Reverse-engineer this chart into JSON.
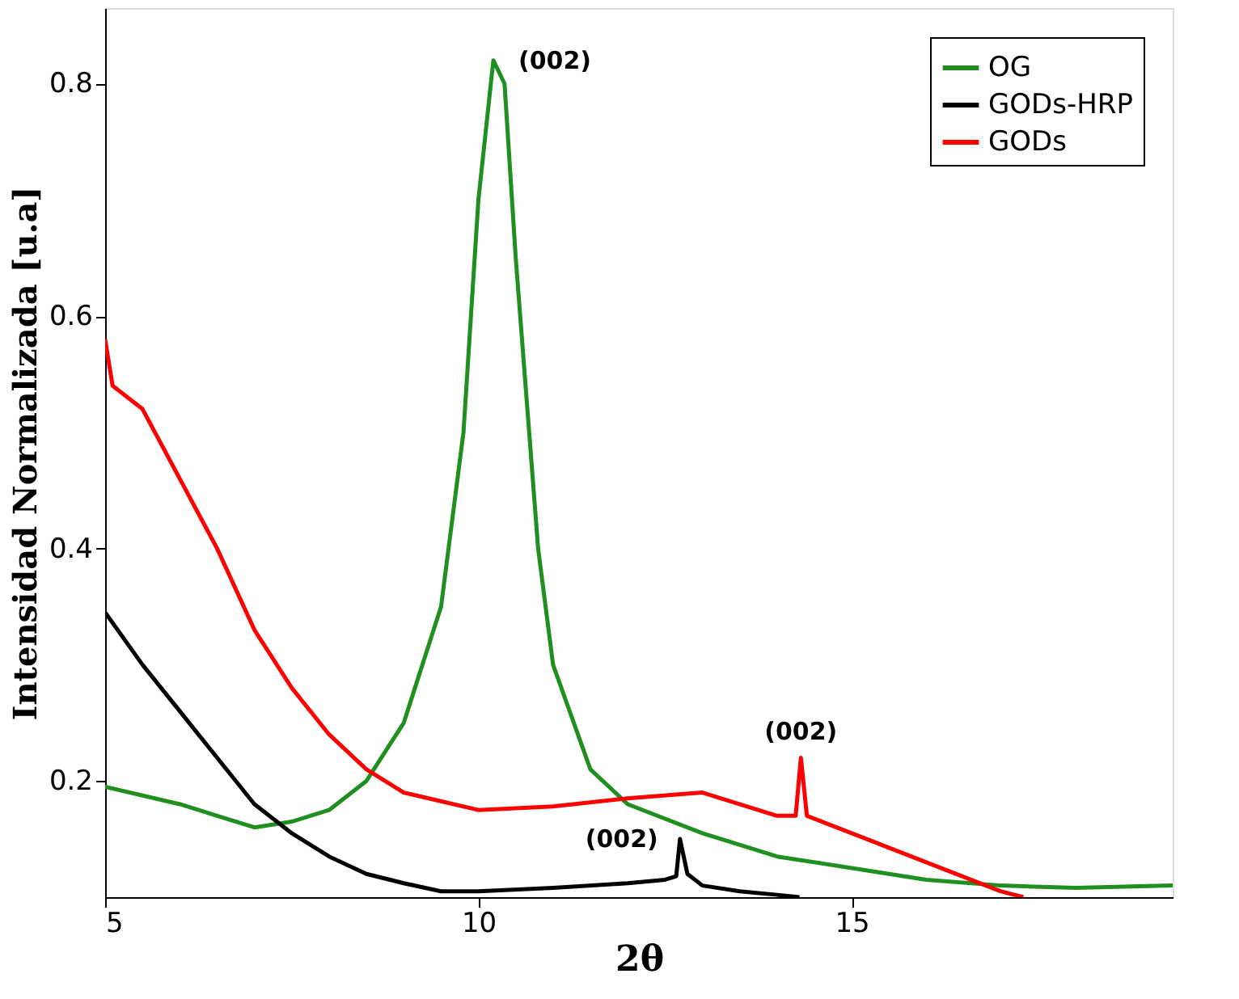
{
  "chart_data": {
    "type": "line",
    "xlabel": "2θ",
    "ylabel": "Intensidad Normalizada [u.a]",
    "xlim": [
      5,
      19.3
    ],
    "xticks": [
      5,
      10,
      15
    ],
    "ylim": [
      0.1,
      0.865
    ],
    "yticks": [
      0.2,
      0.4,
      0.6,
      0.8
    ],
    "grid": false,
    "legend": "top right",
    "marker": "none",
    "line_style": "solid",
    "series": [
      {
        "name": "OG",
        "color": "#1f8f1f",
        "x": [
          5,
          6,
          7,
          7.5,
          8,
          8.5,
          9,
          9.5,
          9.8,
          10,
          10.2,
          10.35,
          10.5,
          10.8,
          11,
          11.5,
          12,
          13,
          14,
          15,
          16,
          17,
          18,
          19.3
        ],
        "values": [
          0.195,
          0.18,
          0.16,
          0.165,
          0.175,
          0.2,
          0.25,
          0.35,
          0.5,
          0.7,
          0.82,
          0.8,
          0.65,
          0.4,
          0.3,
          0.21,
          0.18,
          0.155,
          0.135,
          0.125,
          0.115,
          0.11,
          0.108,
          0.11
        ]
      },
      {
        "name": "GODs-HRP",
        "color": "#000000",
        "x": [
          5,
          5.5,
          6,
          6.5,
          7,
          7.5,
          8,
          8.5,
          9,
          9.5,
          10,
          11,
          12,
          12.5,
          12.65,
          12.7,
          12.8,
          13,
          13.5,
          14,
          14.3
        ],
        "values": [
          0.345,
          0.3,
          0.26,
          0.22,
          0.18,
          0.155,
          0.135,
          0.12,
          0.112,
          0.105,
          0.105,
          0.108,
          0.112,
          0.115,
          0.118,
          0.15,
          0.12,
          0.11,
          0.105,
          0.102,
          0.1
        ]
      },
      {
        "name": "GODs",
        "color": "#ff0000",
        "x": [
          5,
          5.1,
          5.5,
          6,
          6.5,
          7,
          7.5,
          8,
          8.5,
          9,
          10,
          11,
          12,
          13,
          14,
          14.25,
          14.32,
          14.4,
          15,
          16,
          17,
          17.3
        ],
        "values": [
          0.58,
          0.54,
          0.52,
          0.46,
          0.4,
          0.33,
          0.28,
          0.24,
          0.21,
          0.19,
          0.175,
          0.178,
          0.185,
          0.19,
          0.17,
          0.17,
          0.22,
          0.17,
          0.155,
          0.13,
          0.105,
          0.1
        ]
      }
    ],
    "annotations": [
      {
        "text": "(002)",
        "x": 10.2,
        "y": 0.82
      },
      {
        "text": "(002)",
        "x": 14.32,
        "y": 0.22
      },
      {
        "text": "(002)",
        "x": 12.7,
        "y": 0.15
      }
    ]
  }
}
